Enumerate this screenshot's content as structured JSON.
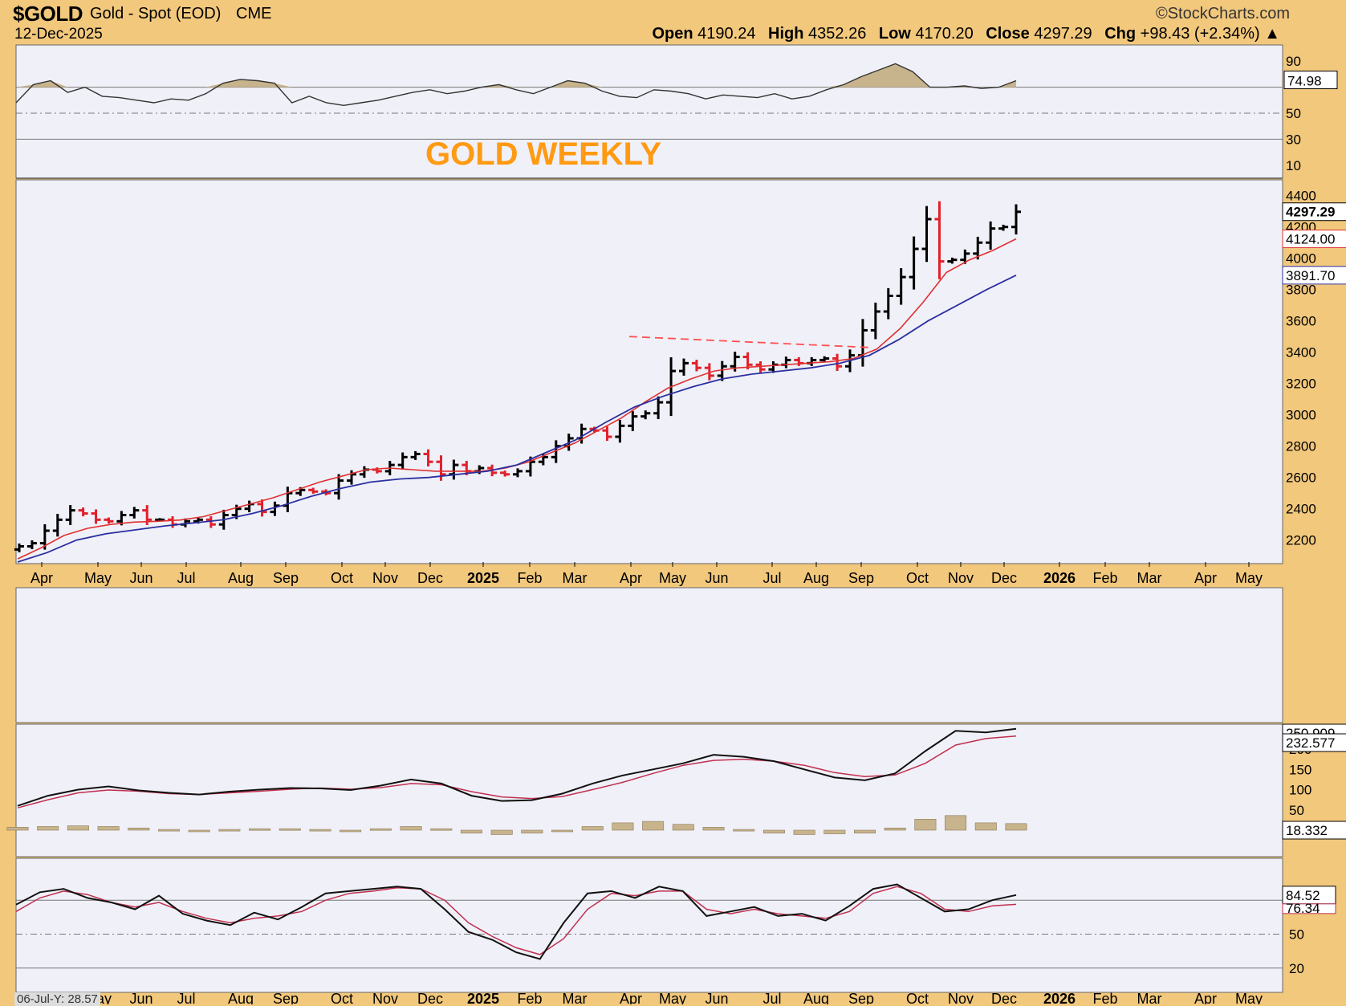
{
  "header": {
    "symbol": "$GOLD",
    "description": "Gold - Spot (EOD)",
    "exchange": "CME",
    "brand": "©StockCharts.com",
    "date": "12-Dec-2025",
    "open_label": "Open",
    "open_value": "4190.24",
    "high_label": "High",
    "high_value": "4352.26",
    "low_label": "Low",
    "low_value": "4170.20",
    "close_label": "Close",
    "close_value": "4297.29",
    "chg_label": "Chg",
    "chg_value": "+98.43 (+2.34%)"
  },
  "annotation": "GOLD WEEKLY",
  "colors": {
    "background": "#f2c87c",
    "panel": "#f0f0f8",
    "up_bar": "#000000",
    "down_bar": "#e0202a",
    "ma_short": "#e03030",
    "ma_long": "#2b2fa0",
    "fill": "#c8b48c",
    "annotation": "#ff9a12"
  },
  "chart_data": [
    {
      "type": "line",
      "panel": "RSI",
      "y_ticks": [
        90,
        50,
        30,
        10
      ],
      "ylim": [
        0,
        100
      ],
      "reference_lines": [
        70,
        50,
        30
      ],
      "current_value_label": "74.98",
      "series": [
        {
          "values": [
            58,
            72,
            75,
            66,
            70,
            63,
            62,
            60,
            58,
            61,
            60,
            65,
            73,
            76,
            75,
            73,
            58,
            63,
            58,
            56,
            58,
            60,
            63,
            66,
            68,
            65,
            67,
            70,
            72,
            68,
            65,
            70,
            75,
            73,
            67,
            63,
            62,
            68,
            67,
            65,
            61,
            64,
            63,
            62,
            65,
            61,
            63,
            68,
            72,
            78,
            83,
            88,
            82,
            70,
            70,
            71,
            69,
            70,
            75
          ]
        }
      ]
    },
    {
      "type": "line",
      "panel": "Price",
      "x_tick_labels": [
        "Apr",
        "May",
        "Jun",
        "Jul",
        "Aug",
        "Sep",
        "Oct",
        "Nov",
        "Dec",
        "2025",
        "Feb",
        "Mar",
        "Apr",
        "May",
        "Jun",
        "Jul",
        "Aug",
        "Sep",
        "Oct",
        "Nov",
        "Dec",
        "2026",
        "Feb",
        "Mar",
        "Apr",
        "May"
      ],
      "y_ticks": [
        4400,
        4200,
        4000,
        3800,
        3600,
        3400,
        3200,
        3000,
        2800,
        2600,
        2400,
        2200
      ],
      "ylim": [
        2060,
        4460
      ],
      "value_labels": [
        "4297.29",
        "4124.00",
        "3891.70"
      ],
      "series": [
        {
          "values": [
            2160,
            2180,
            2260,
            2330,
            2390,
            2370,
            2330,
            2320,
            2360,
            2390,
            2330,
            2330,
            2300,
            2320,
            2330,
            2300,
            2360,
            2400,
            2430,
            2380,
            2420,
            2500,
            2520,
            2510,
            2500,
            2580,
            2620,
            2650,
            2640,
            2680,
            2730,
            2750,
            2700,
            2620,
            2680,
            2640,
            2660,
            2630,
            2620,
            2640,
            2700,
            2730,
            2800,
            2850,
            2910,
            2900,
            2860,
            2930,
            2990,
            3010,
            3080,
            3280,
            3330,
            3300,
            3250,
            3310,
            3370,
            3320,
            3290,
            3320,
            3350,
            3330,
            3350,
            3360,
            3310,
            3380,
            3540,
            3660,
            3760,
            3880,
            4060,
            4250,
            3980,
            3990,
            4030,
            4100,
            4190,
            4200,
            4297
          ]
        },
        {
          "name": "",
          "values": [
            2080,
            2150,
            2230,
            2275,
            2300,
            2315,
            2320,
            2328,
            2350,
            2390,
            2430,
            2470,
            2520,
            2570,
            2610,
            2650,
            2660,
            2650,
            2640,
            2640,
            2640,
            2660,
            2700,
            2760,
            2820,
            2900,
            2980,
            3080,
            3170,
            3230,
            3280,
            3300,
            3310,
            3320,
            3330,
            3340,
            3360,
            3420,
            3550,
            3720,
            3910,
            3990,
            4050,
            4124
          ]
        },
        {
          "name": "",
          "values": [
            2060,
            2120,
            2200,
            2240,
            2265,
            2290,
            2310,
            2330,
            2370,
            2420,
            2480,
            2530,
            2570,
            2590,
            2600,
            2620,
            2640,
            2680,
            2760,
            2840,
            2950,
            3050,
            3120,
            3180,
            3230,
            3260,
            3280,
            3300,
            3330,
            3380,
            3480,
            3600,
            3700,
            3800,
            3891.7
          ]
        }
      ]
    },
    {
      "type": "line",
      "panel": "MACD",
      "y_ticks": [
        200,
        150,
        100,
        50
      ],
      "value_labels": [
        "250.909",
        "232.577",
        "18.332"
      ],
      "series": [
        {
          "values": [
            60,
            85,
            100,
            108,
            98,
            92,
            88,
            95,
            100,
            104,
            103,
            99,
            110,
            125,
            115,
            85,
            72,
            74,
            90,
            115,
            135,
            150,
            165,
            186,
            181,
            170,
            150,
            130,
            123,
            140,
            195,
            245,
            241,
            250
          ]
        },
        {
          "values": [
            55,
            75,
            92,
            99,
            96,
            90,
            88,
            92,
            96,
            101,
            104,
            101,
            105,
            115,
            112,
            95,
            82,
            78,
            83,
            100,
            118,
            140,
            160,
            172,
            175,
            170,
            160,
            142,
            132,
            136,
            165,
            210,
            226,
            232
          ]
        },
        {
          "values": [
            8,
            10,
            12,
            10,
            6,
            2,
            0,
            2,
            4,
            4,
            2,
            -2,
            4,
            10,
            4,
            -8,
            -12,
            -8,
            0,
            10,
            20,
            24,
            16,
            8,
            2,
            -8,
            -12,
            -10,
            -8,
            6,
            30,
            40,
            20,
            18
          ]
        }
      ]
    },
    {
      "type": "line",
      "panel": "Stochastic",
      "y_ticks": [
        50,
        20
      ],
      "reference_lines": [
        80,
        50,
        20
      ],
      "value_labels": [
        "84.52",
        "76.34"
      ],
      "bottom_label": "06-Jul-Y: 28.57",
      "series": [
        {
          "values": [
            76,
            87,
            90,
            82,
            78,
            72,
            84,
            68,
            62,
            58,
            69,
            63,
            74,
            86,
            88,
            90,
            92,
            90,
            72,
            52,
            45,
            34,
            28,
            60,
            86,
            88,
            82,
            92,
            88,
            66,
            70,
            74,
            66,
            68,
            62,
            75,
            90,
            94,
            82,
            70,
            72,
            80,
            84.52
          ]
        },
        {
          "values": [
            70,
            82,
            88,
            85,
            78,
            74,
            78,
            70,
            64,
            60,
            64,
            66,
            70,
            80,
            86,
            88,
            91,
            90,
            80,
            60,
            48,
            38,
            32,
            46,
            72,
            86,
            84,
            88,
            88,
            72,
            68,
            72,
            68,
            66,
            64,
            70,
            86,
            92,
            86,
            72,
            70,
            75,
            76.34
          ]
        }
      ]
    }
  ]
}
